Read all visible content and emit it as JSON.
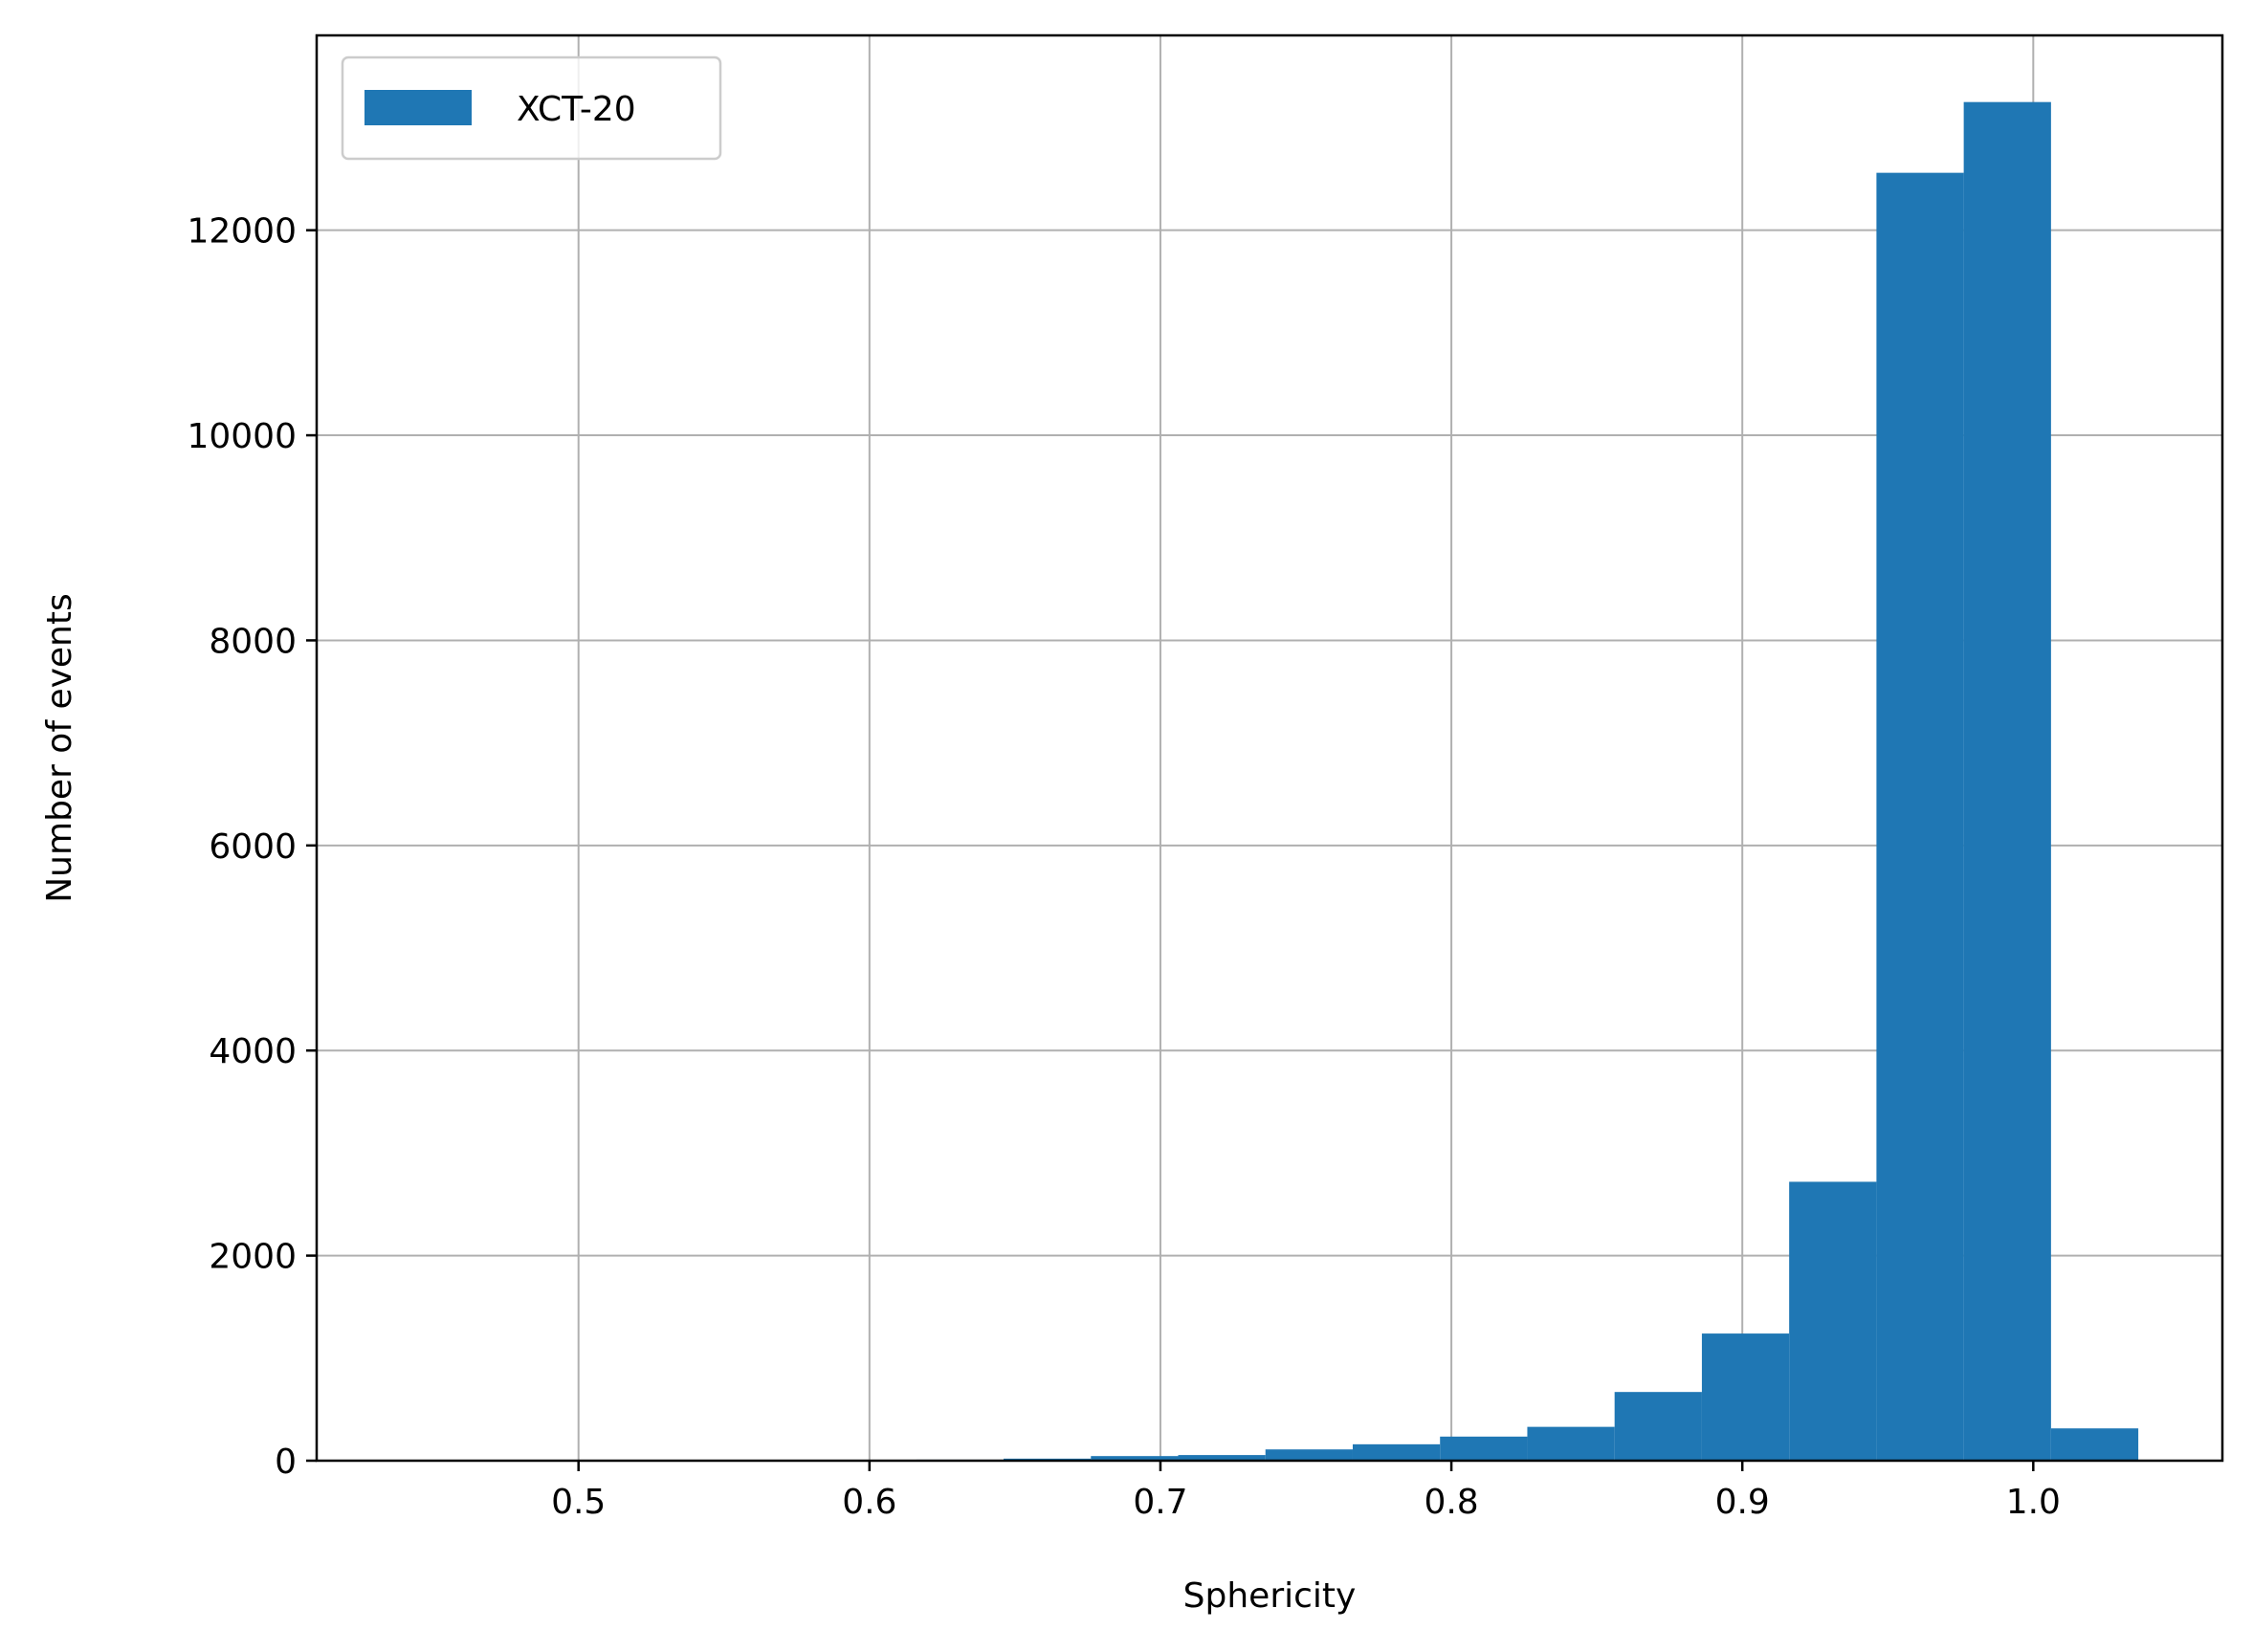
{
  "chart_data": {
    "type": "bar",
    "xlabel": "Sphericity",
    "ylabel": "Number of events",
    "xlim": [
      0.41,
      1.065
    ],
    "ylim": [
      0,
      13900
    ],
    "x_ticks": [
      "0.5",
      "0.6",
      "0.7",
      "0.8",
      "0.9",
      "1.0"
    ],
    "y_ticks": [
      "0",
      "2000",
      "4000",
      "6000",
      "8000",
      "10000",
      "12000"
    ],
    "grid": true,
    "legend_position": "top-left",
    "bar_color": "#1f77b4",
    "series": [
      {
        "name": "XCT-20",
        "bin_edges": [
          0.4361,
          0.4661,
          0.4961,
          0.5261,
          0.5561,
          0.5861,
          0.6161,
          0.6461,
          0.6761,
          0.7061,
          0.7361,
          0.7661,
          0.7961,
          0.8261,
          0.8561,
          0.8861,
          0.9161,
          0.9461,
          0.9761,
          1.0061,
          1.0361
        ],
        "values": [
          0,
          0,
          0,
          0,
          0,
          3,
          10,
          20,
          45,
          55,
          110,
          160,
          235,
          330,
          670,
          1240,
          2720,
          12560,
          13250,
          315
        ]
      }
    ]
  }
}
